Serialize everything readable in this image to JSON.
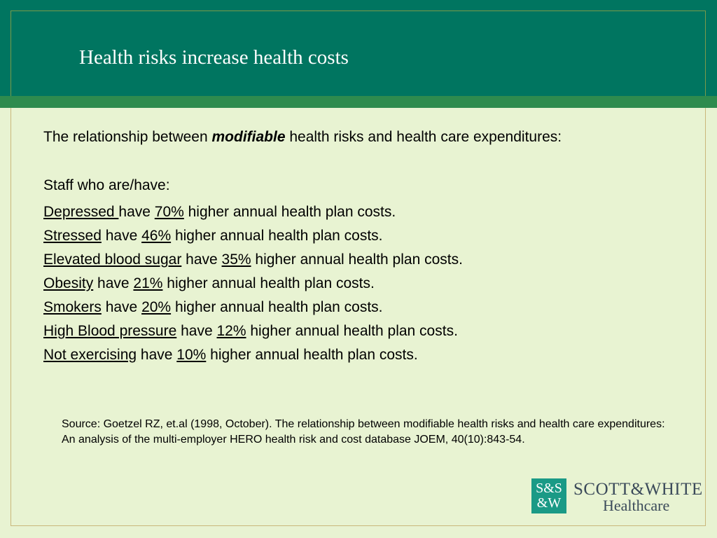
{
  "slide": {
    "title": "Health risks increase health costs",
    "intro": {
      "before": "The relationship between ",
      "emphasis": "modifiable",
      "after": " health risks and health care expenditures:"
    },
    "staff_label": "Staff who are/have:",
    "risks": [
      {
        "risk": "Depressed ",
        "have": "have ",
        "percent": "70%",
        "tail": " higher annual health plan costs."
      },
      {
        "risk": "Stressed",
        "have": " have ",
        "percent": "46%",
        "tail": " higher annual health plan costs."
      },
      {
        "risk": "Elevated blood sugar",
        "have": " have ",
        "percent": "35%",
        "tail": " higher annual health plan costs."
      },
      {
        "risk": "Obesity",
        "have": " have ",
        "percent": "21%",
        "tail": " higher annual health plan costs."
      },
      {
        "risk": "Smokers",
        "have": " have ",
        "percent": "20%",
        "tail": " higher annual health plan costs."
      },
      {
        "risk": "High Blood pressure",
        "have": " have ",
        "percent": "12%",
        "tail": " higher annual health plan costs."
      },
      {
        "risk": "Not exercising",
        "have": " have ",
        "percent": "10%",
        "tail": " higher annual health plan costs."
      }
    ],
    "source": "Source: Goetzel RZ, et.al (1998, October). The relationship between modifiable health risks and health care expenditures: An analysis of the multi-employer HERO health risk and cost database JOEM, 40(10):843-54."
  },
  "logo": {
    "mark_line1": "S&S",
    "mark_line2": "&W",
    "name_line1": "SCOTT&WHITE",
    "name_line2": "Healthcare"
  },
  "colors": {
    "header": "#007560",
    "band": "#2e8b4e",
    "background": "#e8f3d2",
    "logo_mark": "#1a9a86"
  }
}
